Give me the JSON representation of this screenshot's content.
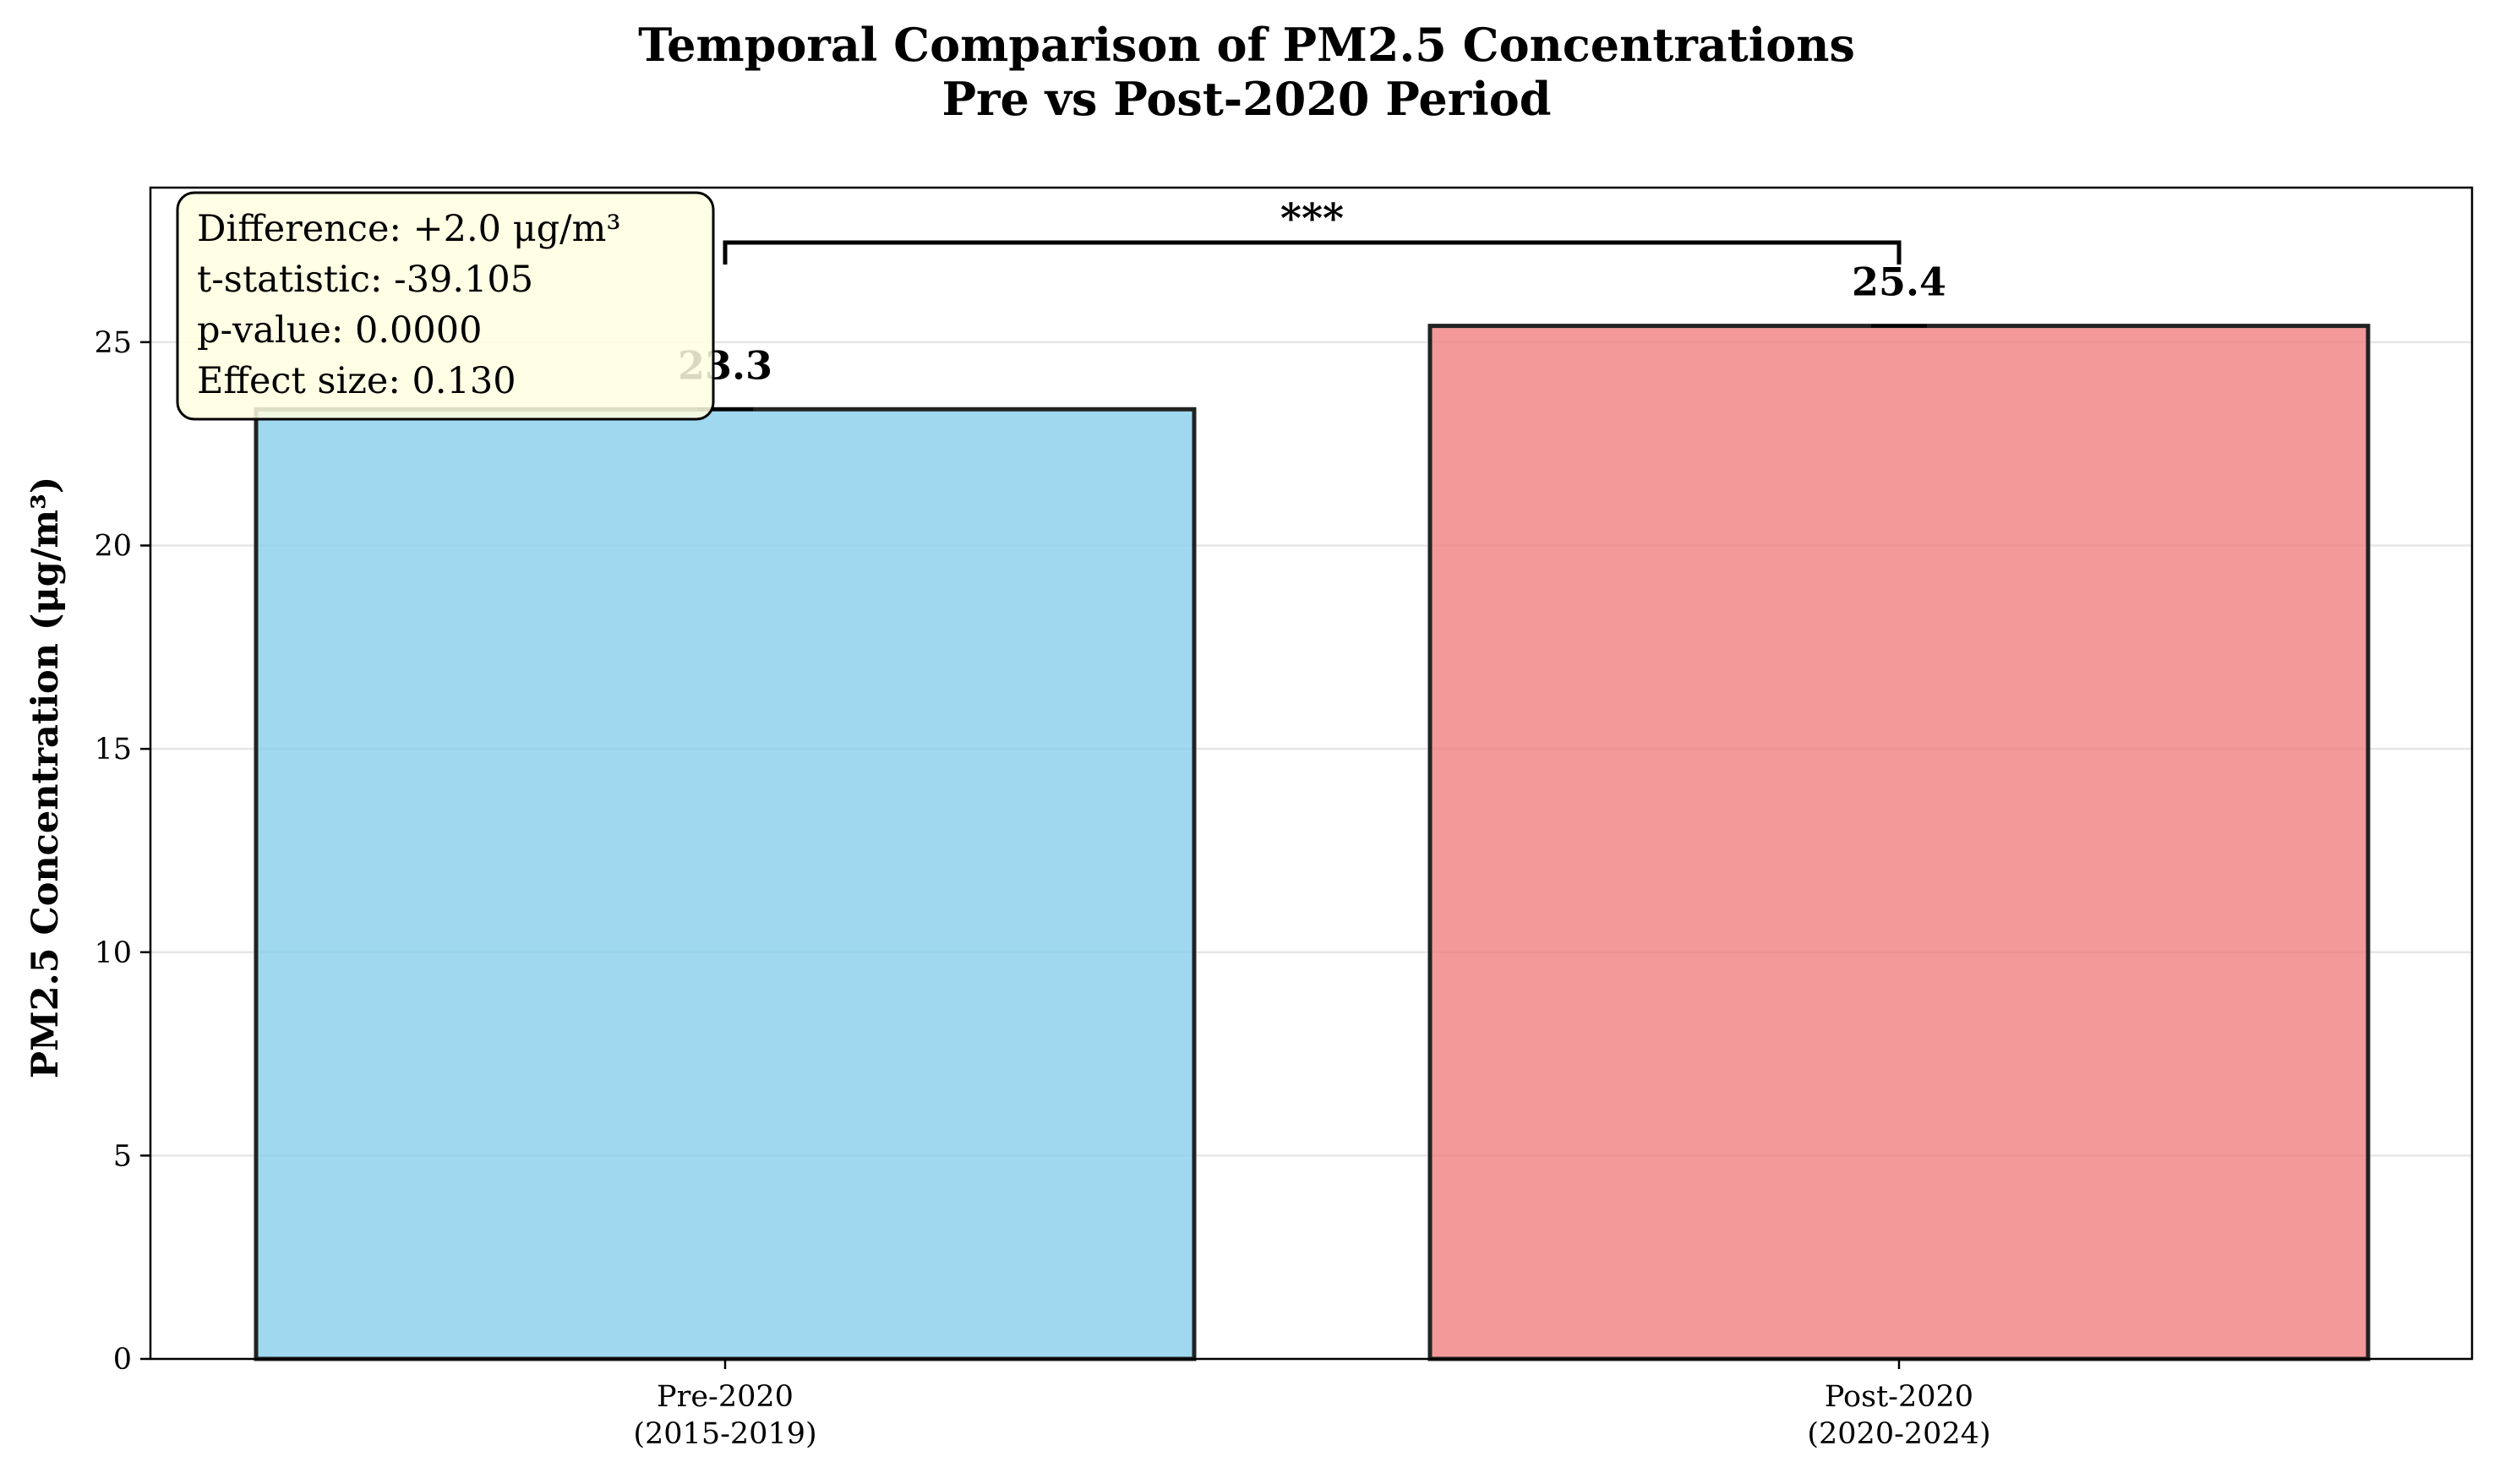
{
  "chart_data": {
    "type": "bar",
    "title": [
      "Temporal Comparison of PM2.5 Concentrations",
      "Pre vs Post-2020 Period"
    ],
    "xlabel": "",
    "ylabel": "PM2.5 Concentration (μg/m³)",
    "ylim": [
      0,
      28.8
    ],
    "yticks": [
      0,
      5,
      10,
      15,
      20,
      25
    ],
    "grid": {
      "y": true,
      "x": false
    },
    "categories": [
      {
        "line1": "Pre-2020",
        "line2": "(2015-2019)"
      },
      {
        "line1": "Post-2020",
        "line2": "(2020-2024)"
      }
    ],
    "values": [
      23.35,
      25.4
    ],
    "value_labels": [
      "23.3",
      "25.4"
    ],
    "error": [
      0.03,
      0.03
    ],
    "bar_colors": [
      "#87CEEB",
      "#F08080"
    ],
    "significance": {
      "label": "***",
      "between": [
        0,
        1
      ],
      "y": 27.45
    },
    "stats_box": [
      "Difference: +2.0 μg/m³",
      "t-statistic: -39.105",
      "p-value: 0.0000",
      "Effect size: 0.130"
    ],
    "stats_box_color": "#FFFFE0"
  }
}
